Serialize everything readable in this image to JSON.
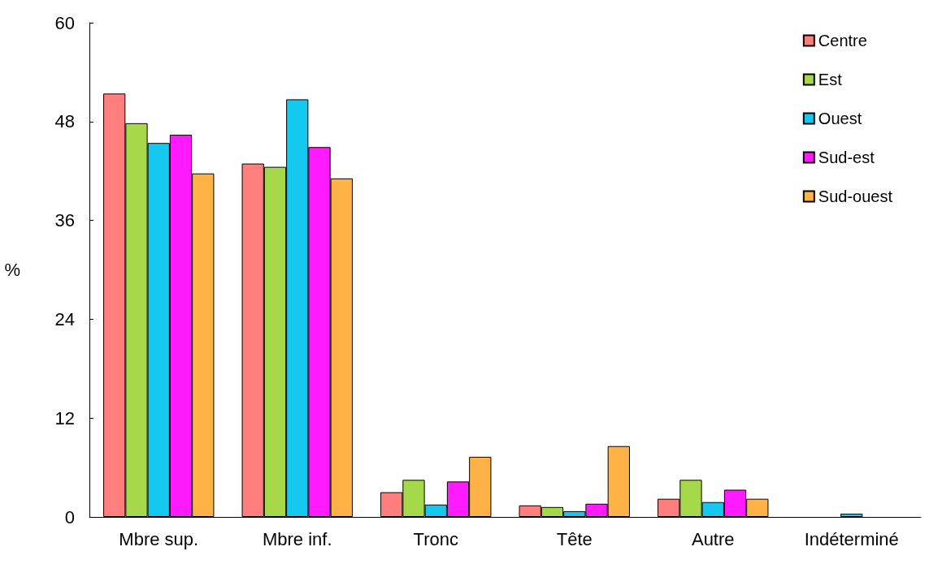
{
  "chart_data": {
    "type": "bar",
    "ylabel": "%",
    "categories": [
      "Mbre sup.",
      "Mbre inf.",
      "Tronc",
      "Tête",
      "Autre",
      "Indéterminé"
    ],
    "series": [
      {
        "name": "Centre",
        "color": "#ff7f7f",
        "values": [
          51.4,
          42.9,
          3.0,
          1.4,
          2.2,
          null
        ]
      },
      {
        "name": "Est",
        "color": "#a6d94a",
        "values": [
          47.8,
          42.5,
          4.5,
          1.2,
          4.5,
          null
        ]
      },
      {
        "name": "Ouest",
        "color": "#14c8f0",
        "values": [
          45.4,
          50.7,
          1.5,
          0.7,
          1.8,
          0.4
        ]
      },
      {
        "name": "Sud-est",
        "color": "#ff1aff",
        "values": [
          46.4,
          44.9,
          4.3,
          1.6,
          3.3,
          null
        ]
      },
      {
        "name": "Sud-ouest",
        "color": "#ffb347",
        "values": [
          41.7,
          41.1,
          7.3,
          8.6,
          2.2,
          null
        ]
      }
    ],
    "ylim": [
      0,
      60
    ],
    "yticks": [
      0,
      12,
      24,
      36,
      48,
      60
    ],
    "grid": false,
    "legend": "top right"
  }
}
